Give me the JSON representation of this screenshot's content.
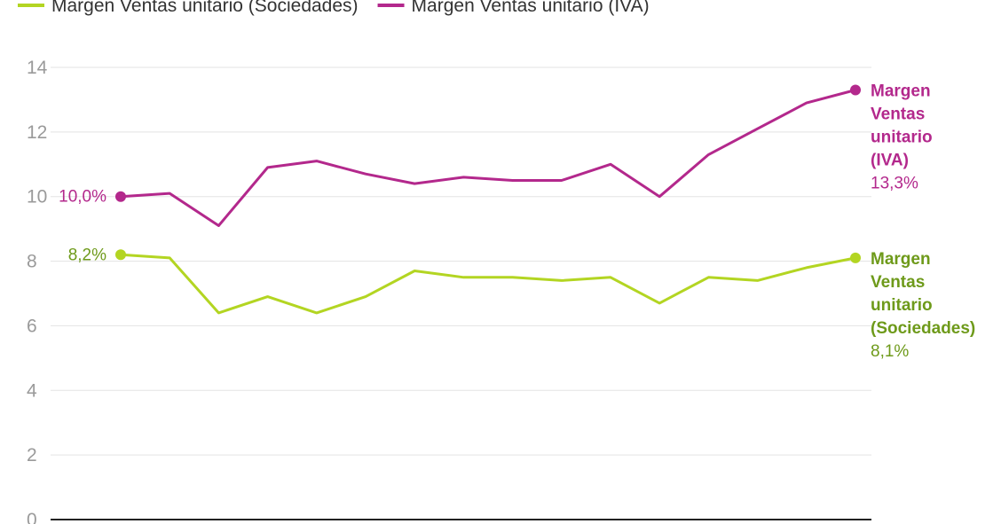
{
  "chart_data": {
    "type": "line",
    "title": "",
    "xlabel": "",
    "ylabel": "",
    "ylim": [
      0,
      14
    ],
    "yticks": [
      0,
      2,
      4,
      6,
      8,
      10,
      12,
      14
    ],
    "grid": true,
    "legend_position": "top-left",
    "series": [
      {
        "name": "Margen Ventas unitario (Sociedades)",
        "color": "#b3d522",
        "label_color": "#6e9a1a",
        "values": [
          8.2,
          8.1,
          6.4,
          6.9,
          6.4,
          6.9,
          7.7,
          7.5,
          7.5,
          7.4,
          7.5,
          6.7,
          7.5,
          7.4,
          7.8,
          8.1
        ],
        "start_label": "8,2%",
        "end_label_lines": [
          "Margen",
          "Ventas",
          "unitario",
          "(Sociedades)"
        ],
        "end_value_label": "8,1%"
      },
      {
        "name": "Margen Ventas unitario (IVA)",
        "color": "#b3288c",
        "label_color": "#b3288c",
        "values": [
          10.0,
          10.1,
          9.1,
          10.9,
          11.1,
          10.7,
          10.4,
          10.6,
          10.5,
          10.5,
          11.0,
          10.0,
          11.3,
          12.1,
          12.9,
          13.3
        ],
        "start_label": "10,0%",
        "end_label_lines": [
          "Margen",
          "Ventas",
          "unitario",
          "(IVA)"
        ],
        "end_value_label": "13,3%"
      }
    ]
  }
}
